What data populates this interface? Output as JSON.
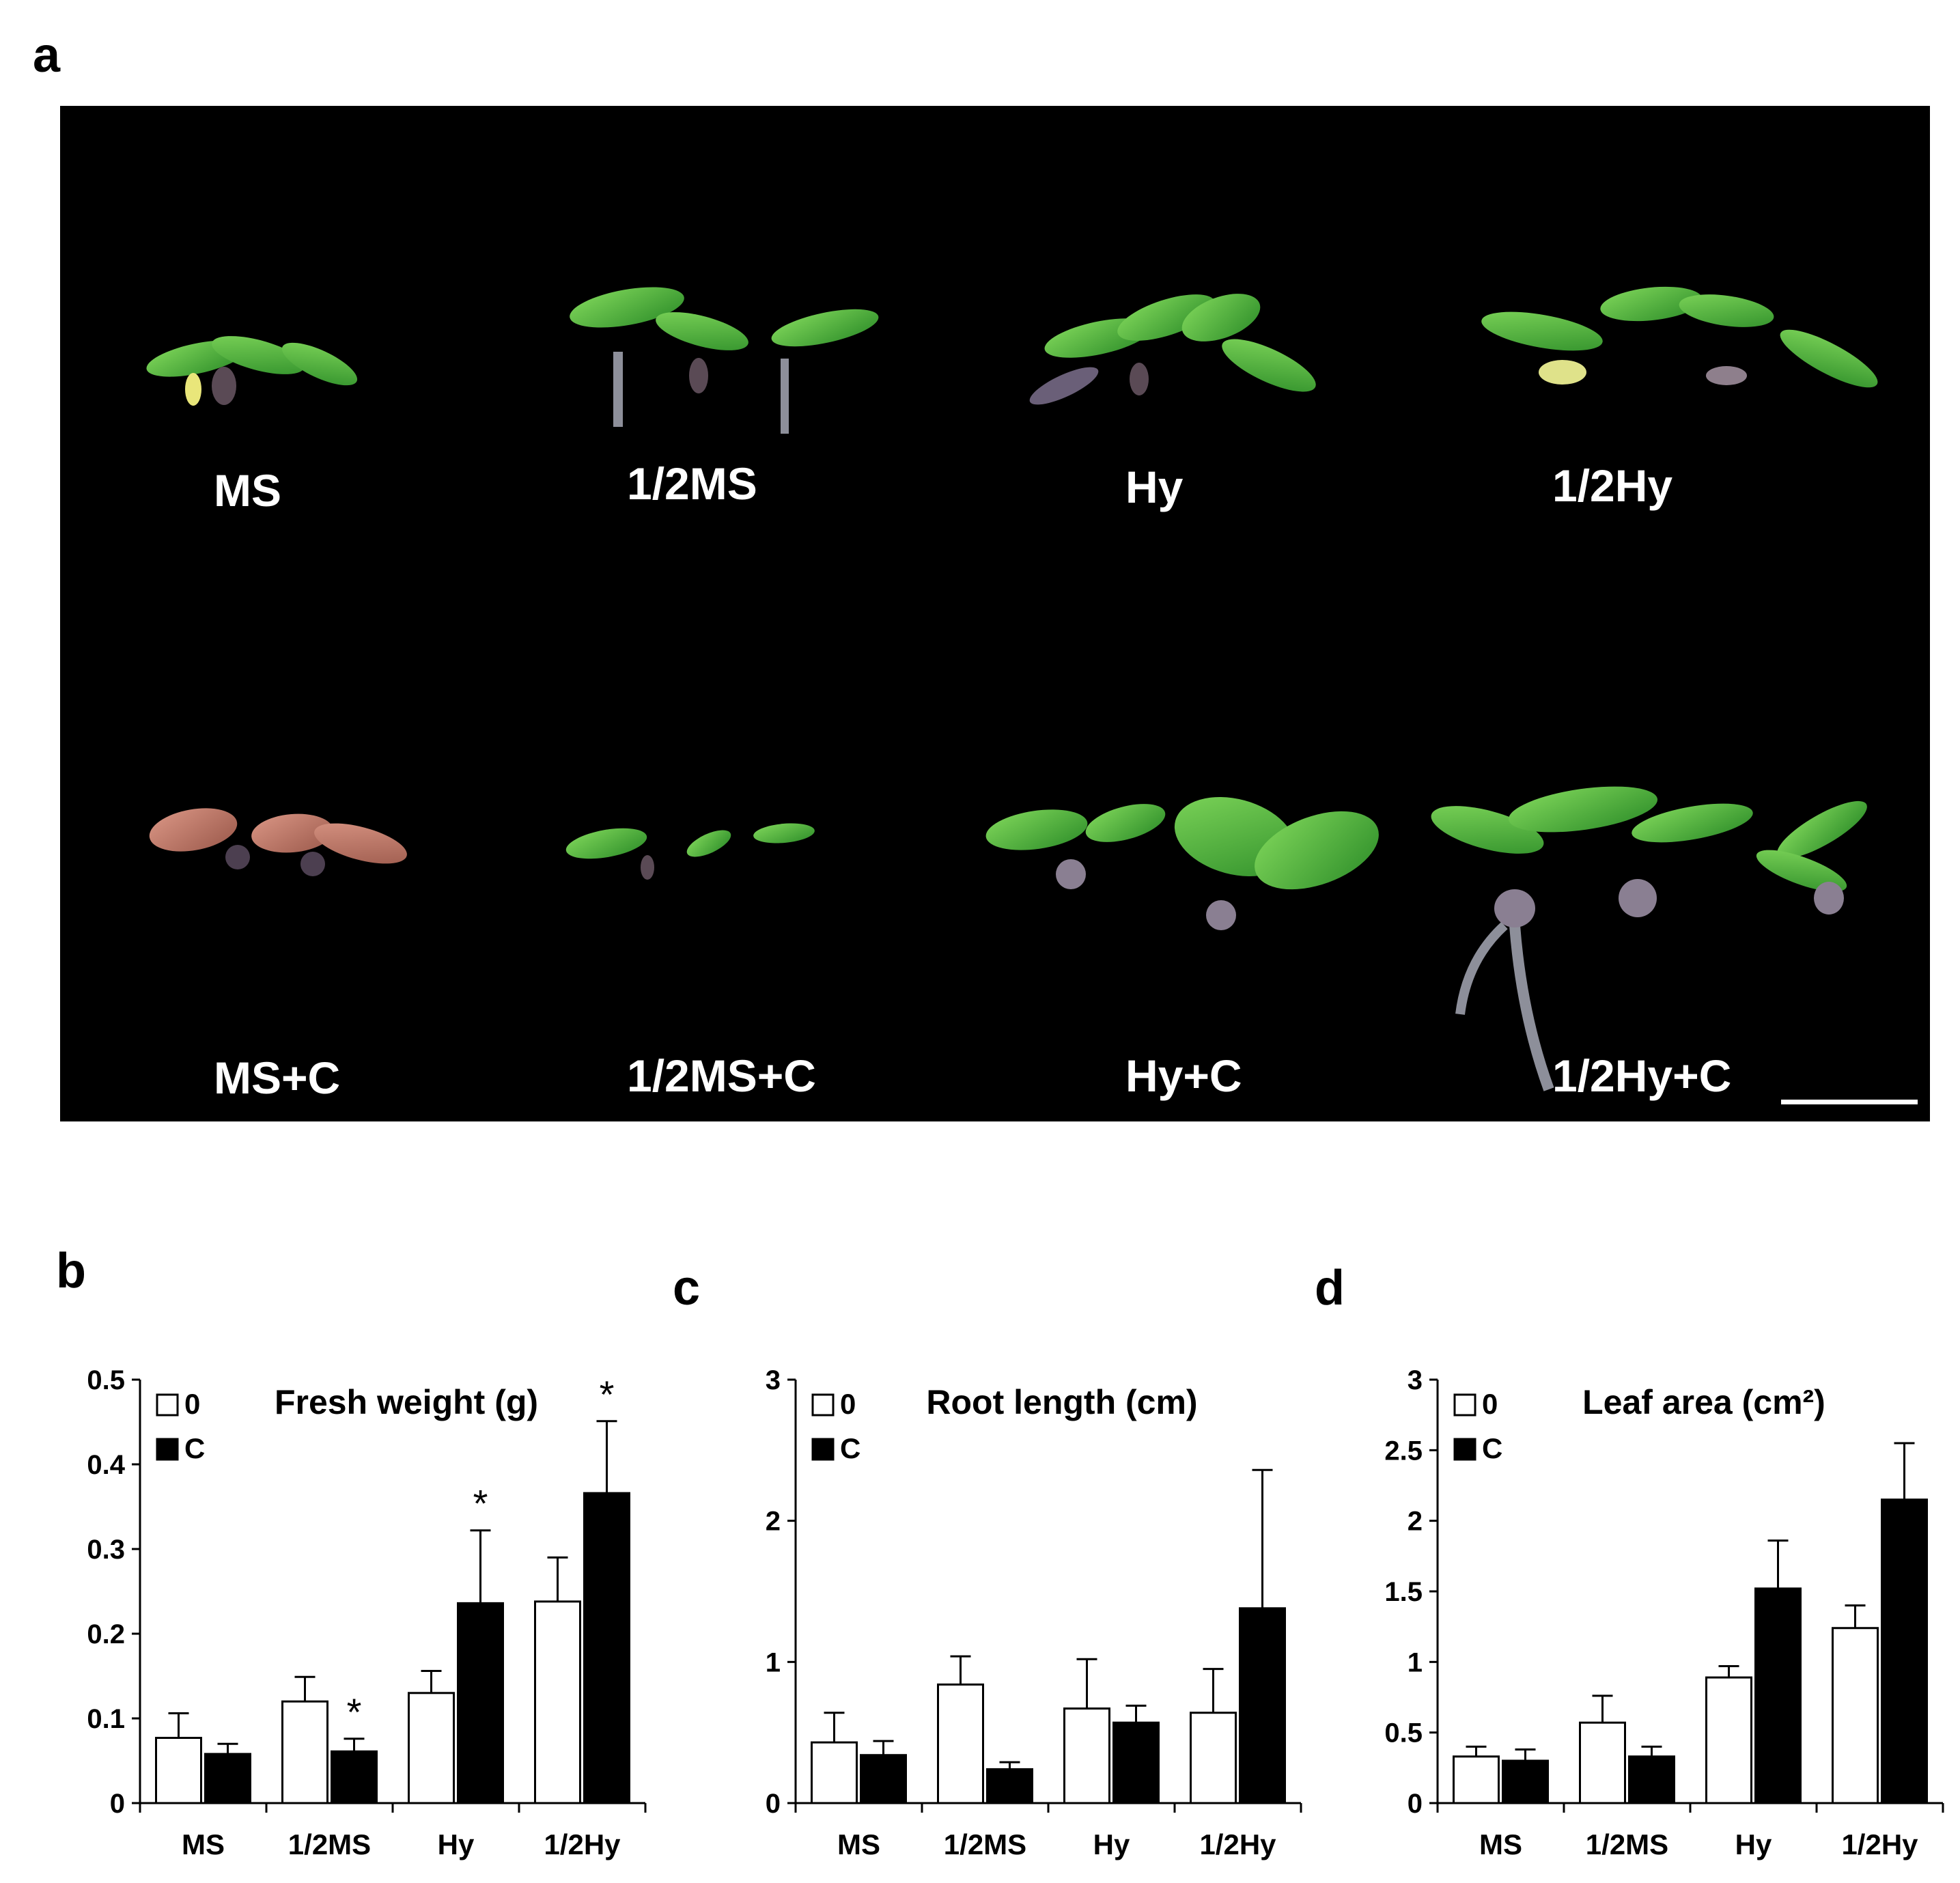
{
  "figure": {
    "panel_letters": [
      "a",
      "b",
      "c",
      "d"
    ],
    "photo": {
      "top_row": [
        "MS",
        "1/2MS",
        "Hy",
        "1/2Hy"
      ],
      "bottom_row": [
        "MS+C",
        "1/2MS+C",
        "Hy+C",
        "1/2Hy+C"
      ],
      "background": "#000000",
      "leaf_color": "#4caf3a",
      "leaf_color_ms_c": "#c47a6a"
    }
  },
  "chart_data": [
    {
      "type": "bar",
      "title": "Fresh weight (g)",
      "categories": [
        "MS",
        "1/2MS",
        "Hy",
        "1/2Hy"
      ],
      "ylim": [
        0,
        0.5
      ],
      "yticks": [
        "0",
        "0.1",
        "0.2",
        "0.3",
        "0.4",
        "0.5"
      ],
      "legend": {
        "position": "top-left",
        "labels": [
          "0",
          "C"
        ]
      },
      "series": [
        {
          "name": "0",
          "color": "#ffffff",
          "values": [
            0.077,
            0.12,
            0.13,
            0.238
          ],
          "errors": [
            0.029,
            0.029,
            0.026,
            0.052
          ]
        },
        {
          "name": "C",
          "color": "#000000",
          "values": [
            0.058,
            0.061,
            0.236,
            0.366
          ],
          "errors": [
            0.012,
            0.015,
            0.086,
            0.085
          ]
        }
      ],
      "significance": {
        "marker": "*",
        "series": "C",
        "categories": [
          "1/2MS",
          "Hy",
          "1/2Hy"
        ]
      }
    },
    {
      "type": "bar",
      "title": "Root length (cm)",
      "categories": [
        "MS",
        "1/2MS",
        "Hy",
        "1/2Hy"
      ],
      "ylim": [
        0,
        3
      ],
      "yticks": [
        "0",
        "1",
        "2",
        "3"
      ],
      "legend": {
        "position": "top-left",
        "labels": [
          "0",
          "C"
        ]
      },
      "series": [
        {
          "name": "0",
          "color": "#ffffff",
          "values": [
            0.43,
            0.84,
            0.67,
            0.64
          ],
          "errors": [
            0.21,
            0.2,
            0.35,
            0.31
          ]
        },
        {
          "name": "C",
          "color": "#000000",
          "values": [
            0.34,
            0.24,
            0.57,
            1.38
          ],
          "errors": [
            0.1,
            0.05,
            0.12,
            0.98
          ]
        }
      ]
    },
    {
      "type": "bar",
      "title": "Leaf area (cm²)",
      "categories": [
        "MS",
        "1/2MS",
        "Hy",
        "1/2Hy"
      ],
      "ylim": [
        0,
        3
      ],
      "yticks": [
        "0",
        "0.5",
        "1",
        "1.5",
        "2",
        "2.5",
        "3"
      ],
      "legend": {
        "position": "top-left",
        "labels": [
          "0",
          "C"
        ]
      },
      "series": [
        {
          "name": "0",
          "color": "#ffffff",
          "values": [
            0.33,
            0.57,
            0.89,
            1.24
          ],
          "errors": [
            0.07,
            0.19,
            0.08,
            0.16
          ]
        },
        {
          "name": "C",
          "color": "#000000",
          "values": [
            0.3,
            0.33,
            1.52,
            2.15
          ],
          "errors": [
            0.08,
            0.07,
            0.34,
            0.4
          ]
        }
      ]
    }
  ]
}
